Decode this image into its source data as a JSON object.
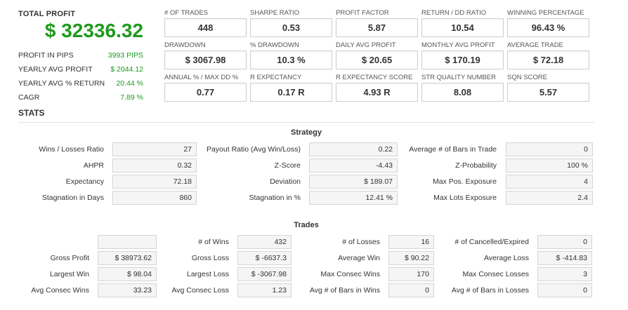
{
  "summary": {
    "total_profit_label": "TOTAL PROFIT",
    "total_profit_value": "$ 32336.32",
    "rows": [
      {
        "label": "PROFIT IN PIPS",
        "value": "3993 PIPS"
      },
      {
        "label": "YEARLY AVG PROFIT",
        "value": "$ 2044.12"
      },
      {
        "label": "YEARLY AVG % RETURN",
        "value": "20.44 %"
      },
      {
        "label": "CAGR",
        "value": "7.89 %"
      }
    ]
  },
  "metrics": [
    {
      "label": "# OF TRADES",
      "value": "448"
    },
    {
      "label": "SHARPE RATIO",
      "value": "0.53"
    },
    {
      "label": "PROFIT FACTOR",
      "value": "5.87"
    },
    {
      "label": "RETURN / DD RATIO",
      "value": "10.54"
    },
    {
      "label": "WINNING PERCENTAGE",
      "value": "96.43 %"
    },
    {
      "label": "DRAWDOWN",
      "value": "$ 3067.98"
    },
    {
      "label": "% DRAWDOWN",
      "value": "10.3 %"
    },
    {
      "label": "DAILY AVG PROFIT",
      "value": "$ 20.65"
    },
    {
      "label": "MONTHLY AVG PROFIT",
      "value": "$ 170.19"
    },
    {
      "label": "AVERAGE TRADE",
      "value": "$ 72.18"
    },
    {
      "label": "ANNUAL % / MAX DD %",
      "value": "0.77"
    },
    {
      "label": "R EXPECTANCY",
      "value": "0.17 R"
    },
    {
      "label": "R EXPECTANCY SCORE",
      "value": "4.93 R"
    },
    {
      "label": "STR QUALITY NUMBER",
      "value": "8.08"
    },
    {
      "label": "SQN SCORE",
      "value": "5.57"
    }
  ],
  "stats_title": "STATS",
  "strategy": {
    "title": "Strategy",
    "rows": [
      [
        {
          "label": "Wins / Losses Ratio",
          "value": "27"
        },
        {
          "label": "Payout Ratio (Avg Win/Loss)",
          "value": "0.22"
        },
        {
          "label": "Average # of Bars in Trade",
          "value": "0"
        }
      ],
      [
        {
          "label": "AHPR",
          "value": "0.32"
        },
        {
          "label": "Z-Score",
          "value": "-4.43"
        },
        {
          "label": "Z-Probability",
          "value": "100 %"
        }
      ],
      [
        {
          "label": "Expectancy",
          "value": "72.18"
        },
        {
          "label": "Deviation",
          "value": "$ 189.07"
        },
        {
          "label": "Max Pos. Exposure",
          "value": "4"
        }
      ],
      [
        {
          "label": "Stagnation in Days",
          "value": "860"
        },
        {
          "label": "Stagnation in %",
          "value": "12.41 %"
        },
        {
          "label": "Max Lots Exposure",
          "value": "2.4"
        }
      ]
    ]
  },
  "trades": {
    "title": "Trades",
    "rows": [
      [
        {
          "label": "",
          "value": ""
        },
        {
          "label": "# of Wins",
          "value": "432"
        },
        {
          "label": "# of Losses",
          "value": "16"
        },
        {
          "label": "# of Cancelled/Expired",
          "value": "0"
        }
      ],
      [
        {
          "label": "Gross Profit",
          "value": "$ 38973.62"
        },
        {
          "label": "Gross Loss",
          "value": "$ -6637.3"
        },
        {
          "label": "Average Win",
          "value": "$ 90.22"
        },
        {
          "label": "Average Loss",
          "value": "$ -414.83"
        }
      ],
      [
        {
          "label": "Largest Win",
          "value": "$ 98.04"
        },
        {
          "label": "Largest Loss",
          "value": "$ -3067.98"
        },
        {
          "label": "Max Consec Wins",
          "value": "170"
        },
        {
          "label": "Max Consec Losses",
          "value": "3"
        }
      ],
      [
        {
          "label": "Avg Consec Wins",
          "value": "33.23"
        },
        {
          "label": "Avg Consec Loss",
          "value": "1.23"
        },
        {
          "label": "Avg # of Bars in Wins",
          "value": "0"
        },
        {
          "label": "Avg # of Bars in Losses",
          "value": "0"
        }
      ]
    ]
  }
}
